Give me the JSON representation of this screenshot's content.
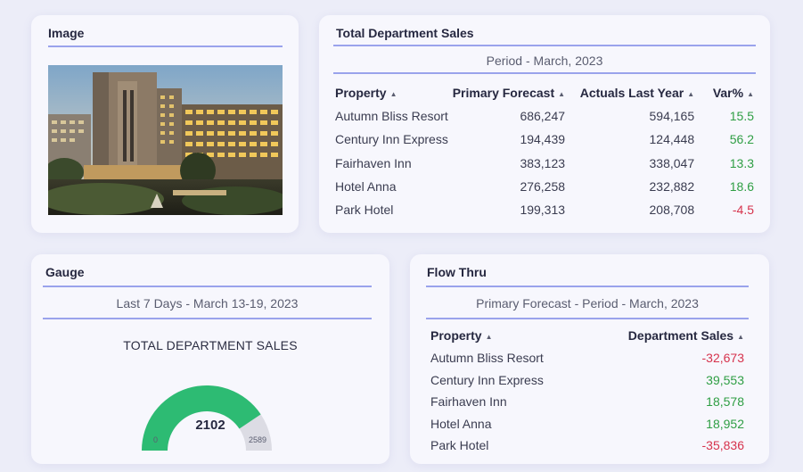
{
  "image_card": {
    "title": "Image",
    "photo_icon": "hotel-photo"
  },
  "sales_card": {
    "title": "Total Department Sales",
    "period": "Period - March, 2023",
    "columns": [
      "Property",
      "Primary Forecast",
      "Actuals Last Year",
      "Var%"
    ],
    "sort_icon": "sort-up-caret",
    "rows": [
      {
        "property": "Autumn Bliss Resort",
        "forecast": "686,247",
        "actuals": "594,165",
        "var": "15.5"
      },
      {
        "property": "Century Inn Express",
        "forecast": "194,439",
        "actuals": "124,448",
        "var": "56.2"
      },
      {
        "property": "Fairhaven Inn",
        "forecast": "383,123",
        "actuals": "338,047",
        "var": "13.3"
      },
      {
        "property": "Hotel Anna",
        "forecast": "276,258",
        "actuals": "232,882",
        "var": "18.6"
      },
      {
        "property": "Park Hotel",
        "forecast": "199,313",
        "actuals": "208,708",
        "var": "-4.5"
      }
    ]
  },
  "gauge_card": {
    "title": "Gauge",
    "period": "Last 7 Days - March 13-19, 2023",
    "heading": "TOTAL DEPARTMENT SALES",
    "value": "2102",
    "min": "0",
    "max": "2589",
    "fill_fraction": 0.8119,
    "fill_color": "#2dbb73",
    "track_color": "#dcdce4"
  },
  "flow_card": {
    "title": "Flow Thru",
    "period": "Primary Forecast - Period - March, 2023",
    "columns": [
      "Property",
      "Department Sales"
    ],
    "rows": [
      {
        "property": "Autumn Bliss Resort",
        "sales": "-32,673"
      },
      {
        "property": "Century Inn Express",
        "sales": "39,553"
      },
      {
        "property": "Fairhaven Inn",
        "sales": "18,578"
      },
      {
        "property": "Hotel Anna",
        "sales": "18,952"
      },
      {
        "property": "Park Hotel",
        "sales": "-35,836"
      }
    ]
  },
  "colors": {
    "positive": "#2f9e44",
    "negative": "#d6334d",
    "accent_rule": "#9aa3ec"
  }
}
